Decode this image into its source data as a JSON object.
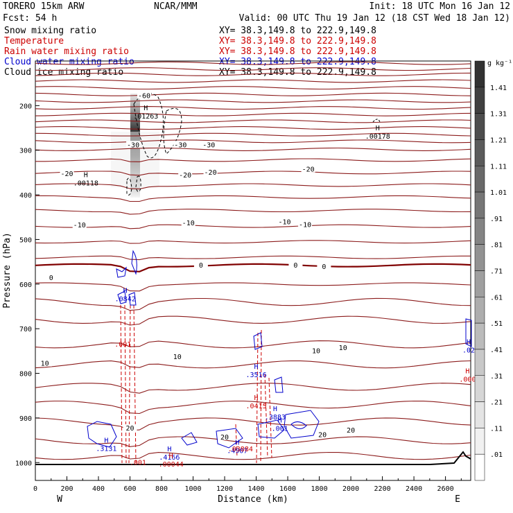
{
  "header": {
    "model": "TORERO  15km ARW",
    "center": "NCAR/MMM",
    "init": "Init: 18 UTC Mon 16 Jan 12",
    "fcst": "Fcst:   54 h",
    "valid": "Valid: 00 UTC Thu 19 Jan 12 (18 CST Wed 18 Jan 12)"
  },
  "legend": [
    {
      "label": "Snow mixing ratio",
      "xy": "XY=  38.3,149.8 to 222.9,149.8",
      "color": "#000000"
    },
    {
      "label": "Temperature",
      "xy": "XY=  38.3,149.8 to 222.9,149.8",
      "color": "#cc0000"
    },
    {
      "label": "Rain water mixing ratio",
      "xy": "XY=  38.3,149.8 to 222.9,149.8",
      "color": "#cc0000"
    },
    {
      "label": "Cloud water mixing ratio",
      "xy": "XY=  38.3,149.8 to 222.9,149.8",
      "color": "#0000cc"
    },
    {
      "label": "Cloud ice mixing ratio",
      "xy": "XY=  38.3,149.8 to 222.9,149.8",
      "color": "#000000"
    }
  ],
  "colorbar": {
    "unit": "g kg⁻¹",
    "labels": [
      "1.41",
      "1.31",
      "1.21",
      "1.11",
      "1.01",
      ".91",
      ".81",
      ".71",
      ".61",
      ".51",
      ".41",
      ".31",
      ".21",
      ".11",
      ".01"
    ]
  },
  "chart_data": {
    "type": "cross-section contour",
    "xlabel": "Distance (km)",
    "ylabel": "Pressure (hPa)",
    "x_ticks": [
      0,
      200,
      400,
      600,
      800,
      1000,
      1200,
      1400,
      1600,
      1800,
      2000,
      2200,
      2400,
      2600
    ],
    "y_ticks": [
      200,
      300,
      400,
      500,
      600,
      700,
      800,
      900,
      1000
    ],
    "xlim": [
      0,
      2760
    ],
    "ylim": [
      100,
      1040
    ],
    "left_end": "W",
    "right_end": "E",
    "temperature_contours": [
      {
        "value": -60,
        "p": 130
      },
      {
        "value": -30,
        "p": 250
      },
      {
        "value": -20,
        "p": 322
      },
      {
        "value": -10,
        "p": 435
      },
      {
        "value": 0,
        "p": 558
      },
      {
        "value": 10,
        "p": 735
      },
      {
        "value": 20,
        "p": 908
      }
    ],
    "temperature_labels": [
      {
        "text": "-60",
        "x": 690,
        "p": 180
      },
      {
        "text": "-30",
        "x": 620,
        "p": 290
      },
      {
        "text": "-30",
        "x": 920,
        "p": 290
      },
      {
        "text": "-30",
        "x": 1100,
        "p": 290
      },
      {
        "text": "-20",
        "x": 200,
        "p": 355
      },
      {
        "text": "-20",
        "x": 950,
        "p": 358
      },
      {
        "text": "-20",
        "x": 1110,
        "p": 352
      },
      {
        "text": "-20",
        "x": 1730,
        "p": 345
      },
      {
        "text": "-10",
        "x": 280,
        "p": 470
      },
      {
        "text": "-10",
        "x": 970,
        "p": 465
      },
      {
        "text": "-10",
        "x": 1580,
        "p": 463
      },
      {
        "text": "-10",
        "x": 1710,
        "p": 469
      },
      {
        "text": "0",
        "x": 100,
        "p": 588
      },
      {
        "text": "0",
        "x": 1050,
        "p": 560
      },
      {
        "text": "0",
        "x": 1650,
        "p": 560
      },
      {
        "text": "0",
        "x": 1830,
        "p": 563
      },
      {
        "text": "10",
        "x": 60,
        "p": 780
      },
      {
        "text": "10",
        "x": 900,
        "p": 765
      },
      {
        "text": "10",
        "x": 1780,
        "p": 752
      },
      {
        "text": "10",
        "x": 1950,
        "p": 745
      },
      {
        "text": "20",
        "x": 600,
        "p": 925
      },
      {
        "text": "20",
        "x": 1200,
        "p": 945
      },
      {
        "text": "20",
        "x": 1820,
        "p": 940
      },
      {
        "text": "20",
        "x": 2000,
        "p": 930
      }
    ],
    "maxima": [
      {
        "label": "H",
        "value": ".01263",
        "x": 700,
        "p": 210,
        "color": "#000000"
      },
      {
        "label": "H",
        "value": ".00178",
        "x": 2170,
        "p": 255,
        "color": "#000000"
      },
      {
        "label": "H",
        "value": ".00118",
        "x": 320,
        "p": 360,
        "color": "#000000"
      },
      {
        "label": "H",
        "value": ".0842",
        "x": 570,
        "p": 620,
        "color": "#0000cc"
      },
      {
        "label": "H",
        "value": ".3516",
        "x": 1400,
        "p": 790,
        "color": "#0000cc"
      },
      {
        "label": "H",
        "value": ".0415",
        "x": 1400,
        "p": 860,
        "color": "#cc0000"
      },
      {
        "label": "H",
        "value": ".3883",
        "x": 1520,
        "p": 885,
        "color": "#0000cc"
      },
      {
        "label": "H",
        "value": ".3131",
        "x": 450,
        "p": 955,
        "color": "#0000cc"
      },
      {
        "label": "H",
        "value": ".4166",
        "x": 850,
        "p": 975,
        "color": "#0000cc"
      },
      {
        "label": "H",
        "value": ".4907",
        "x": 1280,
        "p": 960,
        "color": "#0000cc"
      },
      {
        "label": "H",
        "value": ".00044",
        "x": 860,
        "p": 990,
        "color": "#cc0000"
      },
      {
        "label": "H",
        "value": ".001",
        "x": 1550,
        "p": 910,
        "color": "#0000cc"
      },
      {
        "label": "H",
        "value": ".000",
        "x": 2740,
        "p": 800,
        "color": "#cc0000"
      },
      {
        "label": "H",
        "value": ".02",
        "x": 2760,
        "p": 735,
        "color": "#0000cc"
      }
    ],
    "extra_labels": [
      {
        "text": ".001",
        "x": 555,
        "p": 740,
        "color": "#cc0000"
      },
      {
        "text": ".001",
        "x": 650,
        "p": 1005,
        "color": "#cc0000"
      },
      {
        "text": ".03884",
        "x": 1300,
        "p": 975,
        "color": "#cc0000"
      }
    ]
  }
}
